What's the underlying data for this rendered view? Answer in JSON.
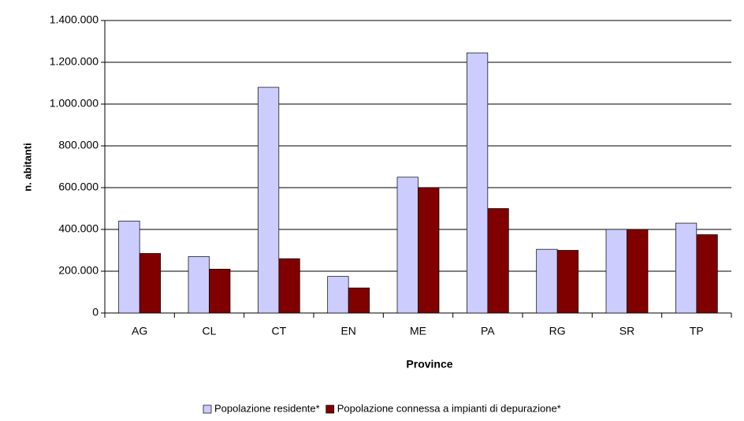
{
  "chart_data": {
    "type": "bar",
    "x_label": "Province",
    "y_label": "n. abitanti",
    "categories": [
      "AG",
      "CL",
      "CT",
      "EN",
      "ME",
      "PA",
      "RG",
      "SR",
      "TP"
    ],
    "series": [
      {
        "name": "Popolazione residente*",
        "color": "#ccccff",
        "values": [
          440000,
          270000,
          1080000,
          175000,
          650000,
          1245000,
          305000,
          400000,
          430000
        ]
      },
      {
        "name": "Popolazione connessa a impianti di depurazione*",
        "color": "#800000",
        "values": [
          285000,
          210000,
          260000,
          120000,
          600000,
          500000,
          300000,
          400000,
          375000
        ]
      }
    ],
    "ylim": [
      0,
      1400000
    ],
    "yticks": [
      0,
      {
        "value": 200000,
        "label": "200.000"
      },
      {
        "value": 400000,
        "label": "400.000"
      },
      {
        "value": 600000,
        "label": "600.000"
      },
      {
        "value": 800000,
        "label": "800.000"
      },
      {
        "value": 1000000,
        "label": "1.000.000"
      },
      {
        "value": 1200000,
        "label": "1.200.000"
      },
      {
        "value": 1400000,
        "label": "1.400.000"
      }
    ],
    "grid": true,
    "legend": "bottom"
  }
}
